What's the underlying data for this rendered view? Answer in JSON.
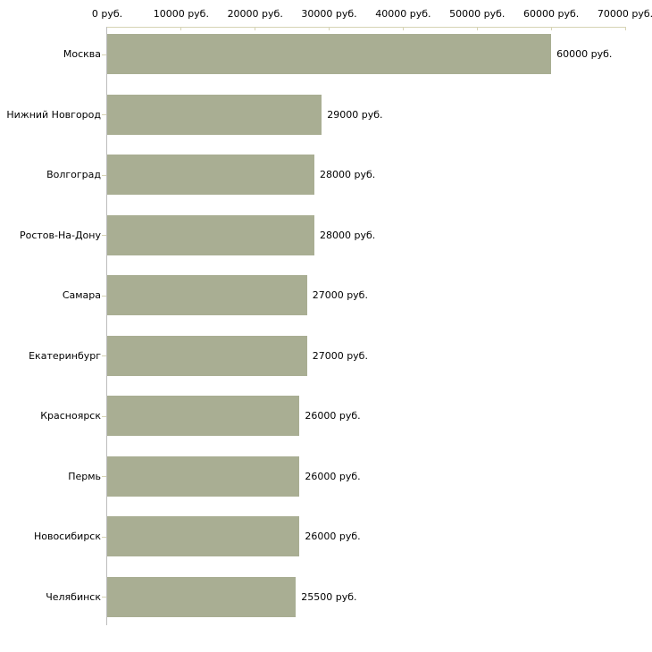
{
  "chart_data": {
    "type": "bar",
    "orientation": "horizontal",
    "title": "",
    "xlabel": "",
    "ylabel": "",
    "unit": "руб.",
    "xlim": [
      0,
      70000
    ],
    "grid": false,
    "legend": false,
    "categories": [
      "Москва",
      "Нижний Новгород",
      "Волгоград",
      "Ростов-На-Дону",
      "Самара",
      "Екатеринбург",
      "Красноярск",
      "Пермь",
      "Новосибирск",
      "Челябинск"
    ],
    "values": [
      60000,
      29000,
      28000,
      28000,
      27000,
      27000,
      26000,
      26000,
      26000,
      25500
    ],
    "value_labels": [
      "60000 руб.",
      "29000 руб.",
      "28000 руб.",
      "28000 руб.",
      "27000 руб.",
      "27000 руб.",
      "26000 руб.",
      "26000 руб.",
      "26000 руб.",
      "25500 руб."
    ],
    "x_ticks": [
      0,
      10000,
      20000,
      30000,
      40000,
      50000,
      60000,
      70000
    ],
    "x_tick_labels": [
      "0 руб.",
      "10000 руб.",
      "20000 руб.",
      "30000 руб.",
      "40000 руб.",
      "50000 руб.",
      "60000 руб.",
      "70000 руб."
    ],
    "colors": {
      "bar": "#a9ae93",
      "axis": "#d6d3b4",
      "baseline": "#bdbdbd",
      "text": "#000000",
      "background": "#ffffff"
    }
  }
}
